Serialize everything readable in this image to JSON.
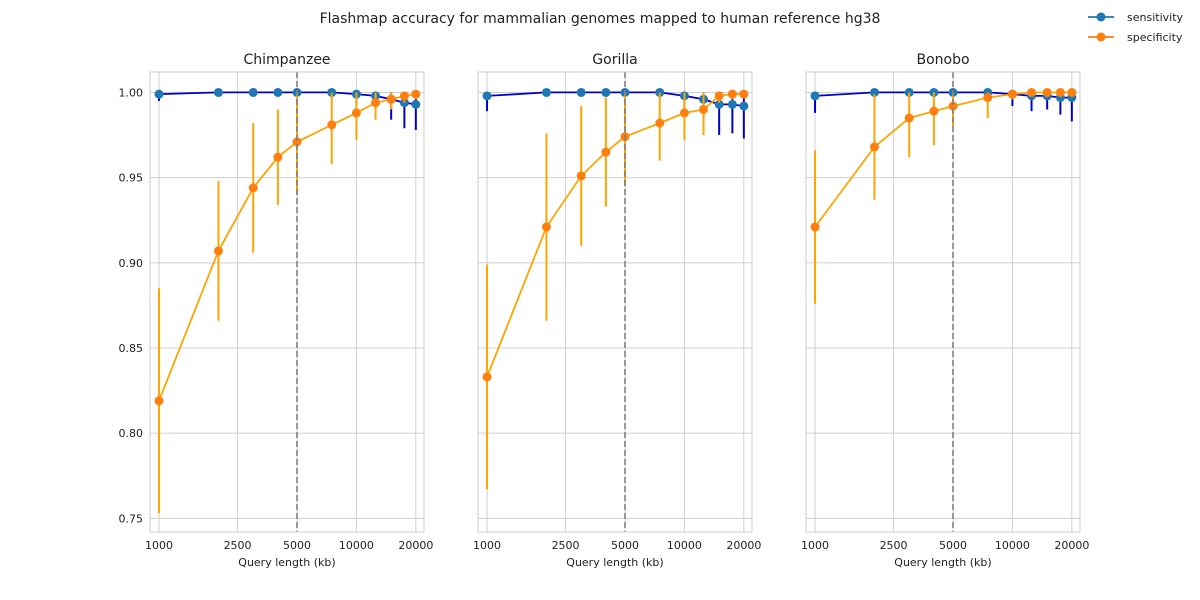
{
  "figure": {
    "suptitle": "Flashmap accuracy for mammalian genomes mapped to human reference hg38"
  },
  "legend": {
    "placement": "top-right",
    "items": [
      {
        "key": "sensitivity",
        "label": "sensitivity",
        "color": "#1f77b4"
      },
      {
        "key": "specificity",
        "label": "specificity",
        "color": "#ff7f0e"
      }
    ]
  },
  "chart_data": [
    {
      "type": "line",
      "title": "Chimpanzee",
      "xlabel": "Query length (kb)",
      "ylabel": "",
      "xscale": "log",
      "xlim": [
        900,
        22000
      ],
      "ylim": [
        0.742,
        1.012
      ],
      "xticks": [
        1000,
        2500,
        5000,
        10000,
        20000
      ],
      "yticks": [
        0.75,
        0.8,
        0.85,
        0.9,
        0.95,
        1.0
      ],
      "grid": true,
      "vline_x": 5000,
      "x": [
        1000,
        2000,
        3000,
        4000,
        5000,
        7500,
        10000,
        12500,
        15000,
        17500,
        20000
      ],
      "series": [
        {
          "name": "sensitivity",
          "marker_color": "#1f77b4",
          "line_color": "#0000cc",
          "values": [
            0.999,
            1.0,
            1.0,
            1.0,
            1.0,
            1.0,
            0.999,
            0.998,
            0.996,
            0.994,
            0.993
          ],
          "err_low": [
            0.995,
            0.999,
            0.999,
            0.999,
            0.998,
            0.998,
            0.993,
            0.99,
            0.984,
            0.979,
            0.978
          ],
          "err_high": [
            1.0,
            1.0,
            1.0,
            1.0,
            1.0,
            1.0,
            1.0,
            1.0,
            1.0,
            1.0,
            1.0
          ]
        },
        {
          "name": "specificity",
          "marker_color": "#ff7f0e",
          "line_color": "#ffa500",
          "values": [
            0.819,
            0.907,
            0.944,
            0.962,
            0.971,
            0.981,
            0.988,
            0.994,
            0.996,
            0.998,
            0.999
          ],
          "err_low": [
            0.753,
            0.866,
            0.906,
            0.934,
            0.94,
            0.958,
            0.972,
            0.984,
            0.99,
            0.994,
            0.996
          ],
          "err_high": [
            0.885,
            0.948,
            0.982,
            0.99,
            1.0,
            1.0,
            1.0,
            1.0,
            1.0,
            1.0,
            1.0
          ]
        }
      ]
    },
    {
      "type": "line",
      "title": "Gorilla",
      "xlabel": "Query length (kb)",
      "ylabel": "",
      "xscale": "log",
      "xlim": [
        900,
        22000
      ],
      "ylim": [
        0.742,
        1.012
      ],
      "xticks": [
        1000,
        2500,
        5000,
        10000,
        20000
      ],
      "yticks": [
        0.75,
        0.8,
        0.85,
        0.9,
        0.95,
        1.0
      ],
      "grid": true,
      "vline_x": 5000,
      "x": [
        1000,
        2000,
        3000,
        4000,
        5000,
        7500,
        10000,
        12500,
        15000,
        17500,
        20000
      ],
      "series": [
        {
          "name": "sensitivity",
          "marker_color": "#1f77b4",
          "line_color": "#0000cc",
          "values": [
            0.998,
            1.0,
            1.0,
            1.0,
            1.0,
            1.0,
            0.998,
            0.996,
            0.993,
            0.993,
            0.992
          ],
          "err_low": [
            0.989,
            0.998,
            0.999,
            0.998,
            0.997,
            0.997,
            0.99,
            0.985,
            0.975,
            0.976,
            0.973
          ],
          "err_high": [
            1.0,
            1.0,
            1.0,
            1.0,
            1.0,
            1.0,
            1.0,
            1.0,
            1.0,
            1.0,
            1.0
          ]
        },
        {
          "name": "specificity",
          "marker_color": "#ff7f0e",
          "line_color": "#ffa500",
          "values": [
            0.833,
            0.921,
            0.951,
            0.965,
            0.974,
            0.982,
            0.988,
            0.99,
            0.998,
            0.999,
            0.999
          ],
          "err_low": [
            0.767,
            0.866,
            0.91,
            0.933,
            0.945,
            0.96,
            0.972,
            0.975,
            0.994,
            0.996,
            0.997
          ],
          "err_high": [
            0.899,
            0.976,
            0.992,
            0.997,
            1.0,
            1.0,
            1.0,
            1.0,
            1.0,
            1.0,
            1.0
          ]
        }
      ]
    },
    {
      "type": "line",
      "title": "Bonobo",
      "xlabel": "Query length (kb)",
      "ylabel": "",
      "xscale": "log",
      "xlim": [
        900,
        22000
      ],
      "ylim": [
        0.742,
        1.012
      ],
      "xticks": [
        1000,
        2500,
        5000,
        10000,
        20000
      ],
      "yticks": [
        0.75,
        0.8,
        0.85,
        0.9,
        0.95,
        1.0
      ],
      "grid": true,
      "vline_x": 5000,
      "x": [
        1000,
        2000,
        3000,
        4000,
        5000,
        7500,
        10000,
        12500,
        15000,
        17500,
        20000
      ],
      "series": [
        {
          "name": "sensitivity",
          "marker_color": "#1f77b4",
          "line_color": "#0000cc",
          "values": [
            0.998,
            1.0,
            1.0,
            1.0,
            1.0,
            1.0,
            0.999,
            0.998,
            0.998,
            0.997,
            0.997
          ],
          "err_low": [
            0.988,
            0.998,
            0.999,
            0.999,
            0.998,
            0.998,
            0.992,
            0.989,
            0.99,
            0.987,
            0.983
          ],
          "err_high": [
            1.0,
            1.0,
            1.0,
            1.0,
            1.0,
            1.0,
            1.0,
            1.0,
            1.0,
            1.0,
            1.0
          ]
        },
        {
          "name": "specificity",
          "marker_color": "#ff7f0e",
          "line_color": "#ffa500",
          "values": [
            0.921,
            0.968,
            0.985,
            0.989,
            0.992,
            0.997,
            0.999,
            1.0,
            1.0,
            1.0,
            1.0
          ],
          "err_low": [
            0.876,
            0.937,
            0.962,
            0.969,
            0.98,
            0.985,
            0.996,
            0.998,
            0.999,
            0.999,
            0.999
          ],
          "err_high": [
            0.966,
            0.999,
            1.0,
            1.0,
            1.0,
            1.0,
            1.0,
            1.0,
            1.0,
            1.0,
            1.0
          ]
        }
      ]
    }
  ]
}
